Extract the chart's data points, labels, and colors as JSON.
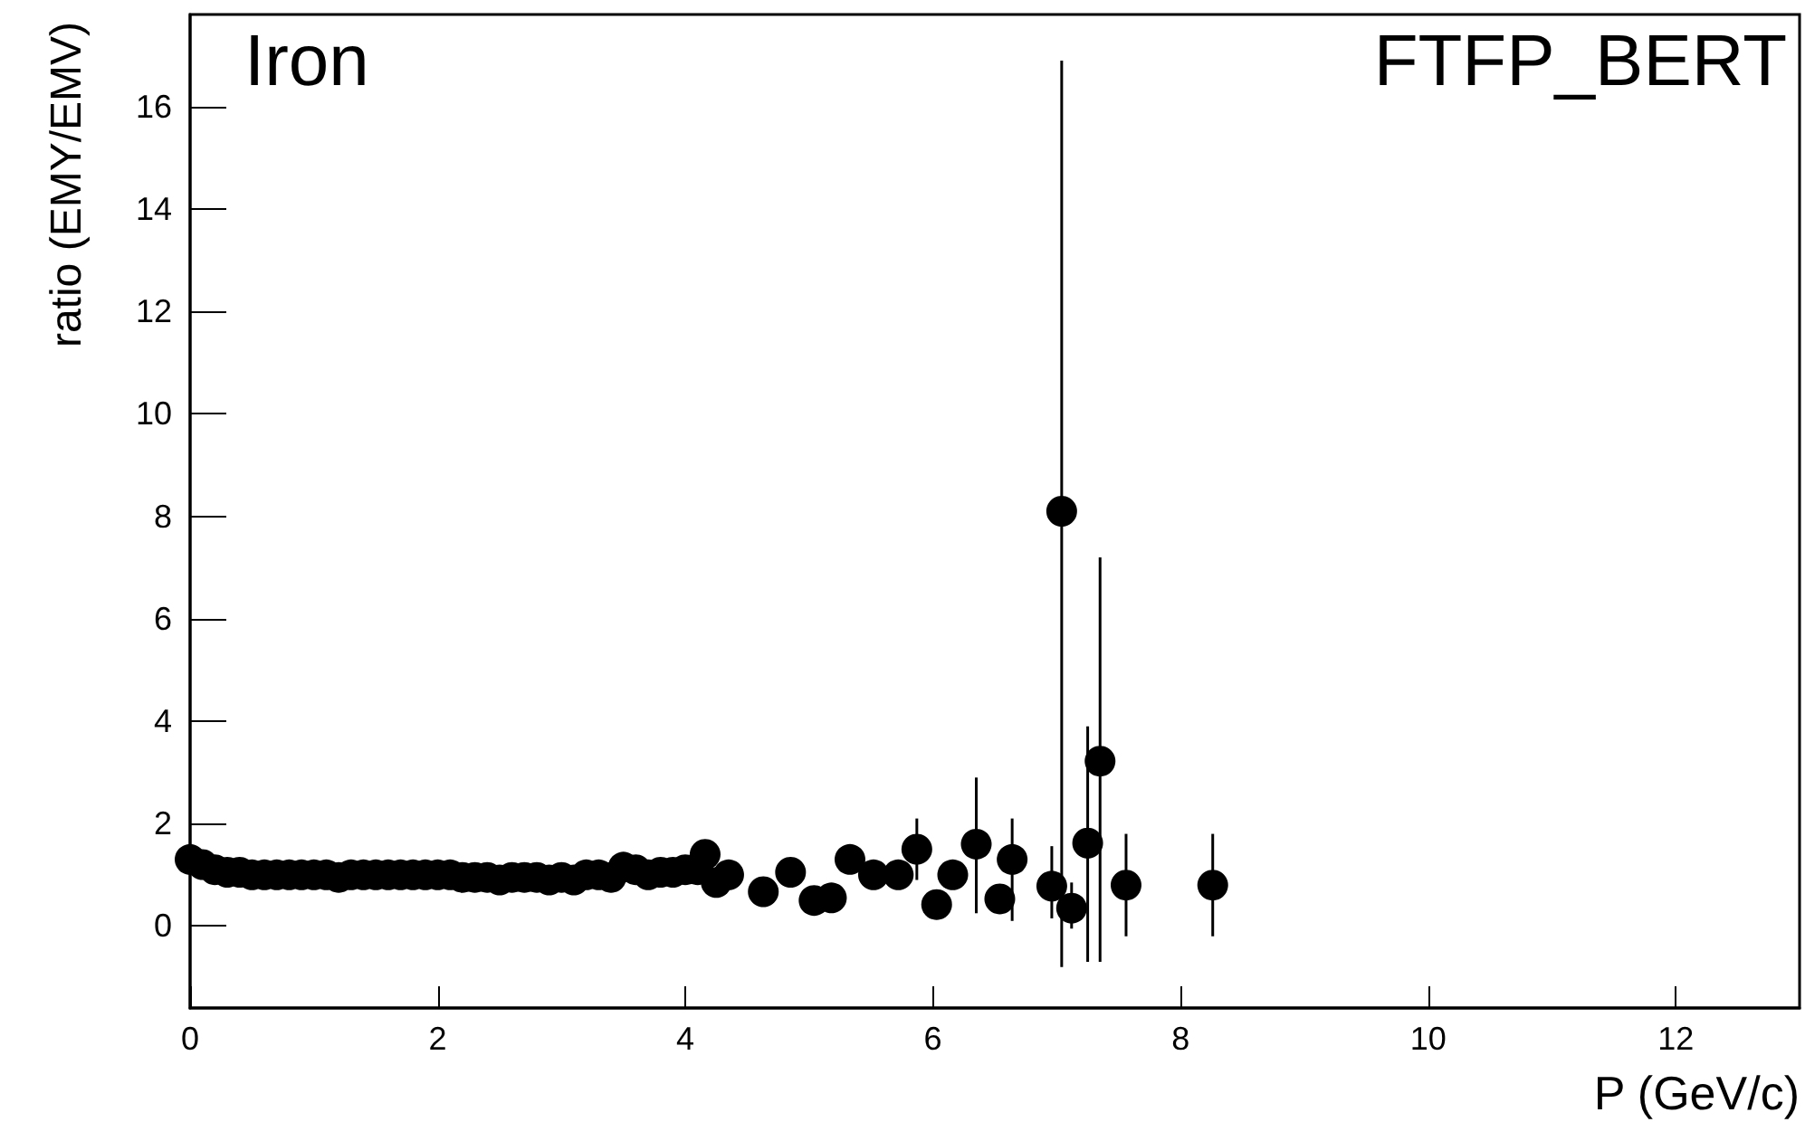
{
  "chart_data": {
    "type": "scatter",
    "xlabel": "P (GeV/c)",
    "ylabel": "ratio (EMY/EMV)",
    "annotations": [
      "Iron",
      "FTFP_BERT"
    ],
    "xlim": [
      0,
      13
    ],
    "xticks": [
      0,
      2,
      4,
      6,
      8,
      10,
      12
    ],
    "ylim": [
      -1.6,
      17.8
    ],
    "yticks": [
      0,
      2,
      4,
      6,
      8,
      10,
      12,
      14,
      16
    ],
    "grid": false,
    "marker": "circle",
    "series": [
      {
        "color": "#000000",
        "x": [
          0.0,
          0.1,
          0.2,
          0.3,
          0.4,
          0.5,
          0.6,
          0.7,
          0.8,
          0.9,
          1.0,
          1.1,
          1.2,
          1.3,
          1.4,
          1.5,
          1.6,
          1.7,
          1.8,
          1.9,
          2.0,
          2.1,
          2.2,
          2.3,
          2.4,
          2.5,
          2.6,
          2.7,
          2.8,
          2.9,
          3.0,
          3.1,
          3.2,
          3.3,
          3.4,
          3.5,
          3.6,
          3.7,
          3.8,
          3.9,
          4.0,
          4.1,
          4.16,
          4.25,
          4.35,
          4.63,
          4.85,
          5.04,
          5.18,
          5.33,
          5.52,
          5.72,
          5.87,
          6.03,
          6.16,
          6.35,
          6.54,
          6.64,
          6.96,
          7.04,
          7.12,
          7.25,
          7.35,
          7.56,
          8.26
        ],
        "values": [
          1.3,
          1.2,
          1.1,
          1.05,
          1.05,
          1.0,
          1.0,
          1.0,
          1.0,
          1.0,
          1.0,
          1.0,
          0.95,
          1.0,
          1.0,
          1.0,
          1.0,
          1.0,
          1.0,
          1.0,
          1.0,
          1.0,
          0.95,
          0.95,
          0.95,
          0.9,
          0.95,
          0.95,
          0.95,
          0.9,
          0.95,
          0.9,
          1.0,
          1.0,
          0.95,
          1.15,
          1.1,
          1.0,
          1.05,
          1.05,
          1.1,
          1.1,
          1.4,
          0.85,
          1.0,
          0.67,
          1.05,
          0.5,
          0.55,
          1.3,
          1.0,
          1.0,
          1.5,
          0.42,
          1.0,
          1.6,
          0.53,
          1.3,
          0.78,
          8.1,
          0.35,
          1.62,
          3.22,
          0.8,
          0.8
        ],
        "errors": [
          null,
          null,
          null,
          null,
          null,
          null,
          null,
          null,
          null,
          null,
          null,
          null,
          null,
          null,
          null,
          null,
          null,
          null,
          null,
          null,
          null,
          null,
          null,
          null,
          null,
          null,
          null,
          null,
          null,
          null,
          null,
          null,
          null,
          null,
          null,
          null,
          null,
          null,
          null,
          null,
          null,
          null,
          null,
          null,
          null,
          null,
          null,
          null,
          null,
          null,
          null,
          null,
          [
            0.9,
            2.1
          ],
          null,
          null,
          [
            0.25,
            2.9
          ],
          null,
          [
            0.1,
            2.1
          ],
          [
            0.15,
            1.56
          ],
          [
            -0.8,
            16.9
          ],
          [
            -0.05,
            0.85
          ],
          [
            -0.7,
            3.9
          ],
          [
            -0.7,
            7.2
          ],
          [
            -0.2,
            1.8
          ],
          [
            -0.2,
            1.8
          ]
        ]
      }
    ]
  }
}
